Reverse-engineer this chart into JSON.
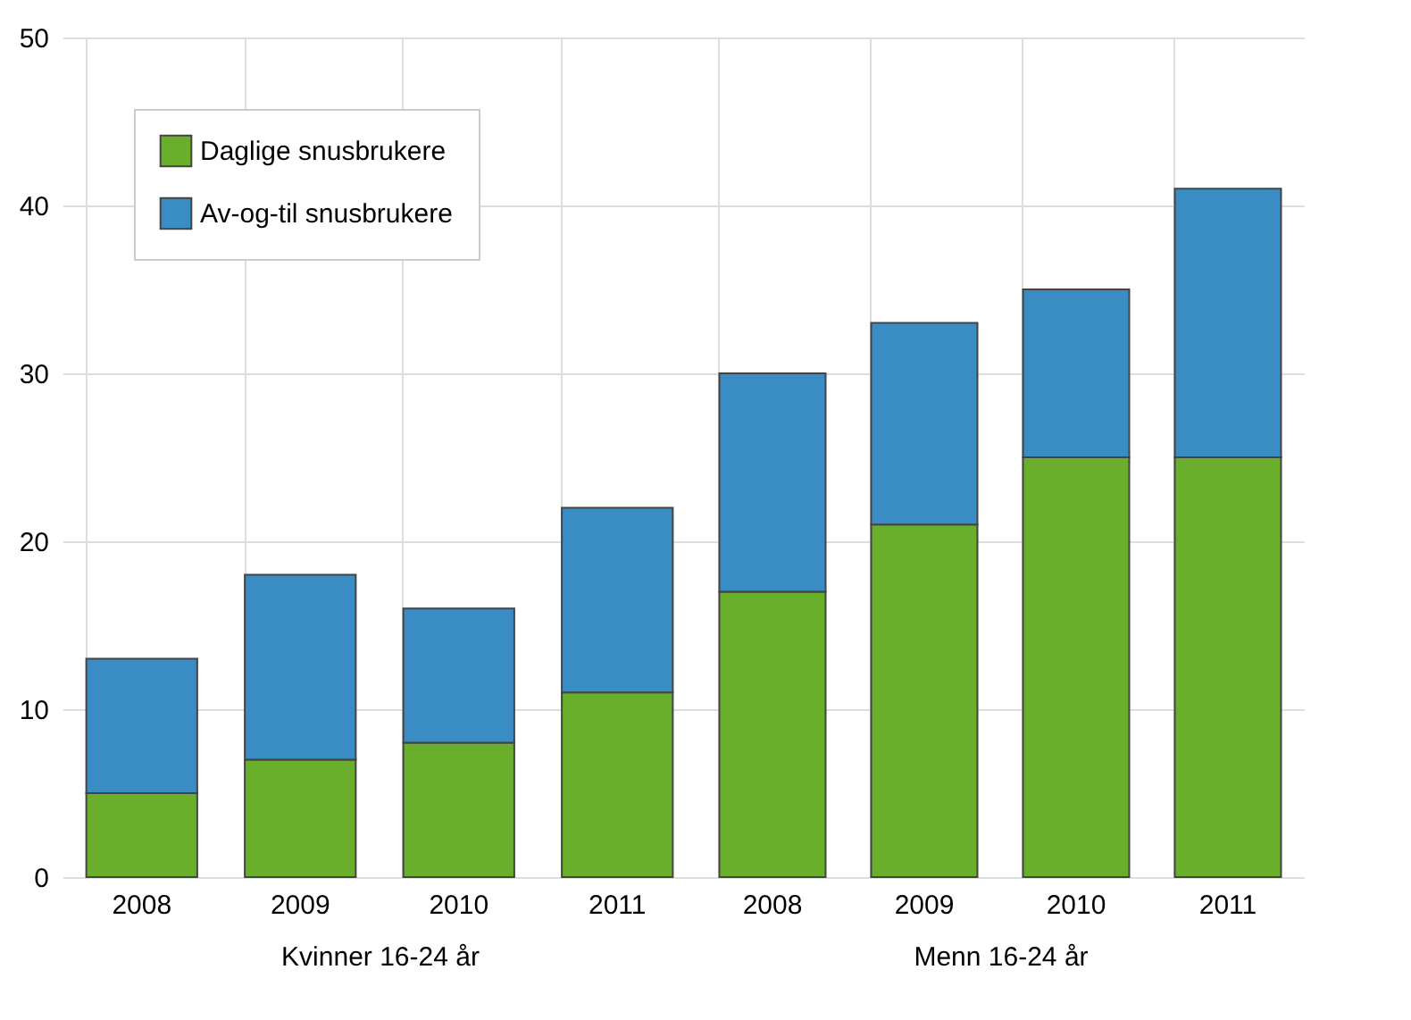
{
  "chart_data": [
    {
      "type": "bar",
      "stacked": true,
      "xlabel": "Kvinner 16-24 år",
      "categories": [
        "2008",
        "2009",
        "2010",
        "2011"
      ],
      "series": [
        {
          "name": "Daglige snusbrukere",
          "color": "#6aaf2b",
          "values": [
            5,
            7,
            8,
            11
          ]
        },
        {
          "name": "Av-og-til snusbrukere",
          "color": "#3a8cc4",
          "values": [
            8,
            11,
            8,
            11
          ]
        }
      ],
      "ylim": [
        0,
        50
      ],
      "yticks": [
        0,
        10,
        20,
        30,
        40,
        50
      ],
      "grid": true,
      "legend": "top left"
    },
    {
      "type": "bar",
      "stacked": true,
      "xlabel": "Menn 16-24 år",
      "categories": [
        "2008",
        "2009",
        "2010",
        "2011"
      ],
      "series": [
        {
          "color": "#6aaf2b",
          "values": [
            17,
            21,
            25,
            25
          ]
        },
        {
          "color": "#3a8cc4",
          "values": [
            13,
            12,
            10,
            16
          ]
        }
      ],
      "ylim": [
        0,
        50
      ],
      "yticks": [
        0,
        10,
        20,
        30,
        40,
        50
      ],
      "grid": true,
      "tick_labels": "x"
    }
  ]
}
